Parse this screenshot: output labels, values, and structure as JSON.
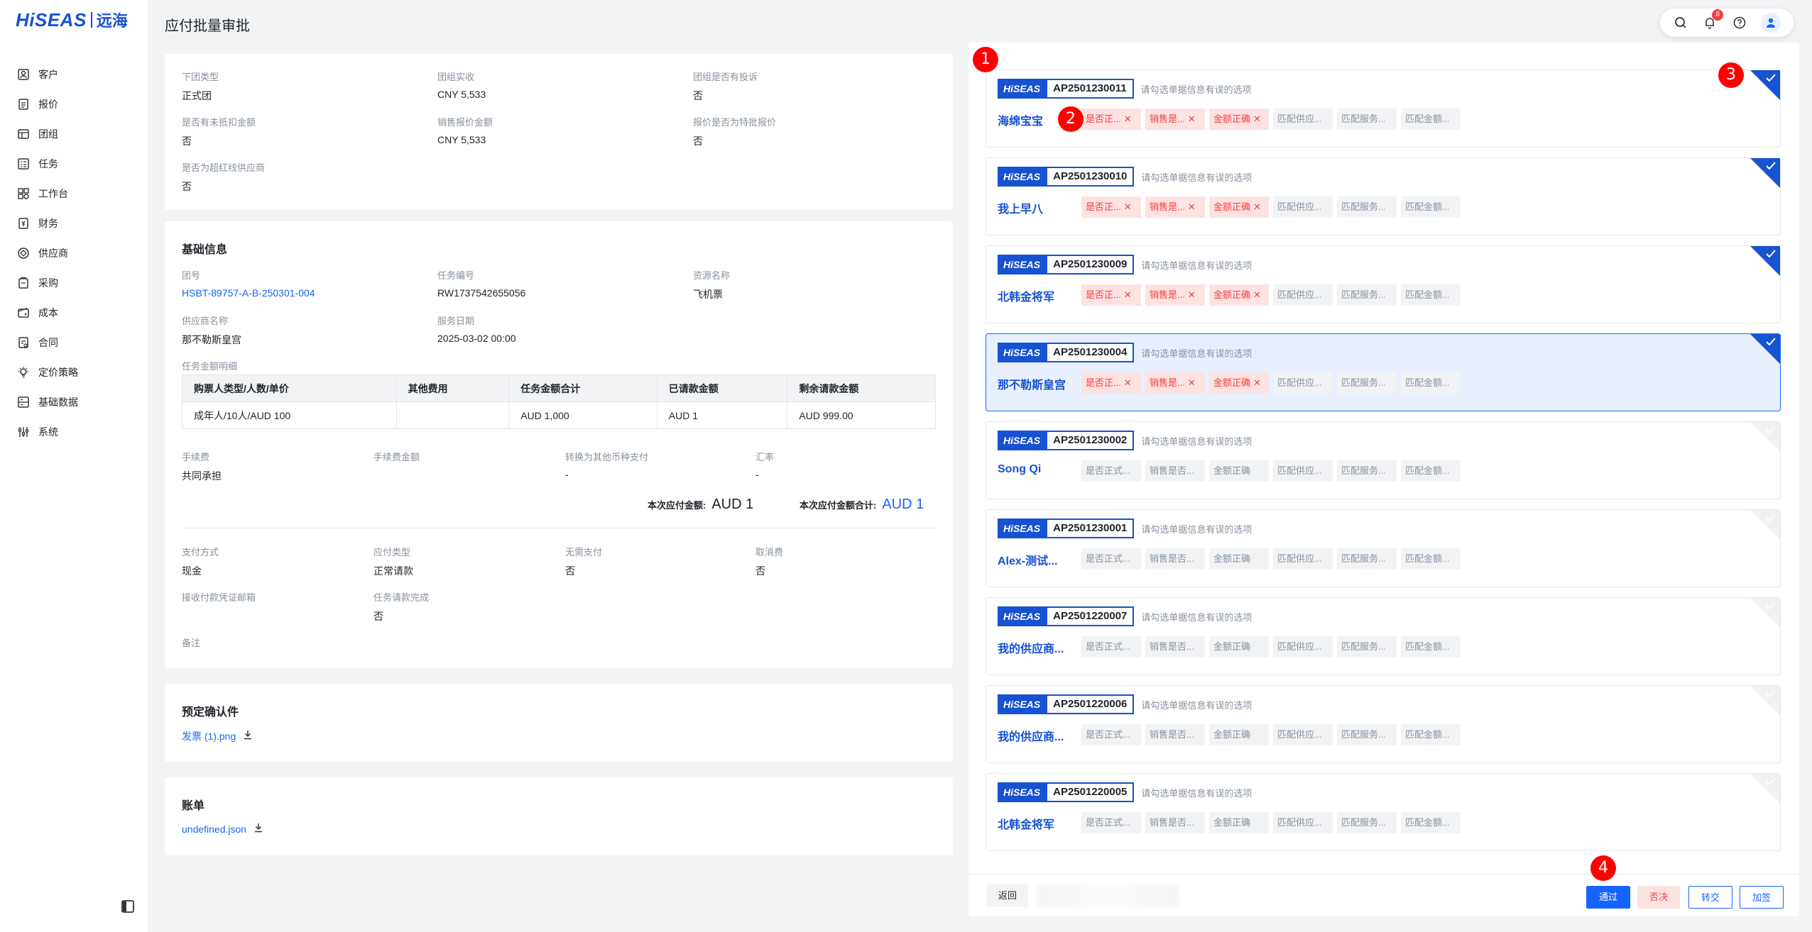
{
  "brand": {
    "en": "HiSEAS",
    "cn": "远海"
  },
  "page_title": "应付批量审批",
  "notifications_count": "8",
  "sidebar": {
    "items": [
      {
        "label": "客户",
        "icon": "customer-icon"
      },
      {
        "label": "报价",
        "icon": "quote-icon"
      },
      {
        "label": "团组",
        "icon": "group-icon"
      },
      {
        "label": "任务",
        "icon": "task-icon"
      },
      {
        "label": "工作台",
        "icon": "workbench-icon"
      },
      {
        "label": "财务",
        "icon": "finance-icon"
      },
      {
        "label": "供应商",
        "icon": "supplier-icon"
      },
      {
        "label": "采购",
        "icon": "purchase-icon"
      },
      {
        "label": "成本",
        "icon": "cost-icon"
      },
      {
        "label": "合同",
        "icon": "contract-icon"
      },
      {
        "label": "定价策略",
        "icon": "pricing-icon"
      },
      {
        "label": "基础数据",
        "icon": "basic-data-icon"
      },
      {
        "label": "系统",
        "icon": "system-icon"
      }
    ]
  },
  "summary": {
    "group_type": {
      "label": "下团类型",
      "value": "正式团"
    },
    "group_received": {
      "label": "团组实收",
      "value": "CNY 5,533"
    },
    "has_complaint": {
      "label": "团组是否有投诉",
      "value": "否"
    },
    "unoffset": {
      "label": "是否有未抵扣金额",
      "value": "否"
    },
    "sales_quote": {
      "label": "销售报价金额",
      "value": "CNY 5,533"
    },
    "special_quote": {
      "label": "报价是否为特批报价",
      "value": "否"
    },
    "redline": {
      "label": "是否为超红线供应商",
      "value": "否"
    }
  },
  "basic": {
    "title": "基础信息",
    "group_no": {
      "label": "团号",
      "value": "HSBT-89757-A-B-250301-004"
    },
    "task_no": {
      "label": "任务编号",
      "value": "RW1737542655056"
    },
    "resource": {
      "label": "资源名称",
      "value": "飞机票"
    },
    "supplier": {
      "label": "供应商名称",
      "value": "那不勒斯皇宫"
    },
    "service_date": {
      "label": "服务日期",
      "value": "2025-03-02 00:00"
    },
    "amount_detail_label": "任务金额明细",
    "table": {
      "headers": [
        "购票人类型/人数/单价",
        "其他费用",
        "任务金额合计",
        "已请款金额",
        "剩余请款金额"
      ],
      "rows": [
        [
          "成年人/10人/AUD 100",
          "",
          "AUD 1,000",
          "AUD 1",
          "AUD 999.00"
        ]
      ]
    },
    "fee": {
      "label": "手续费",
      "value": "共同承担"
    },
    "fee_amount": {
      "label": "手续费金额",
      "value": ""
    },
    "convert": {
      "label": "转换为其他币种支付",
      "value": "-"
    },
    "rate": {
      "label": "汇率",
      "value": "-"
    },
    "this_payable_label": "本次应付金额:",
    "this_payable_value": "AUD 1",
    "this_payable_total_label": "本次应付金额合计:",
    "this_payable_total_value": "AUD 1",
    "pay_method": {
      "label": "支付方式",
      "value": "现金"
    },
    "payable_type": {
      "label": "应付类型",
      "value": "正常请款"
    },
    "no_pay": {
      "label": "无需支付",
      "value": "否"
    },
    "cancel_fee": {
      "label": "取消费",
      "value": "否"
    },
    "voucher_email": {
      "label": "接收付款凭证邮箱",
      "value": ""
    },
    "task_done": {
      "label": "任务请款完成",
      "value": "否"
    },
    "remark": {
      "label": "备注",
      "value": ""
    }
  },
  "confirm": {
    "title": "预定确认件",
    "file": "发票 (1).png"
  },
  "bill": {
    "title": "账单",
    "file": "undefined.json"
  },
  "list": {
    "hint": "请勾选单据信息有误的选项",
    "logo": "HiSEAS",
    "items": [
      {
        "ap": "AP2501230011",
        "supplier": "海绵宝宝",
        "checked": true,
        "selected": false,
        "chips": [
          {
            "t": "是否正...",
            "err": true
          },
          {
            "t": "销售是...",
            "err": true
          },
          {
            "t": "金额正确",
            "err": true
          },
          {
            "t": "匹配供应...",
            "err": false
          },
          {
            "t": "匹配服务...",
            "err": false
          },
          {
            "t": "匹配金额...",
            "err": false
          }
        ]
      },
      {
        "ap": "AP2501230010",
        "supplier": "我上早八",
        "checked": true,
        "selected": false,
        "chips": [
          {
            "t": "是否正...",
            "err": true
          },
          {
            "t": "销售是...",
            "err": true
          },
          {
            "t": "金额正确",
            "err": true
          },
          {
            "t": "匹配供应...",
            "err": false
          },
          {
            "t": "匹配服务...",
            "err": false
          },
          {
            "t": "匹配金额...",
            "err": false
          }
        ]
      },
      {
        "ap": "AP2501230009",
        "supplier": "北韩金将军",
        "checked": true,
        "selected": false,
        "chips": [
          {
            "t": "是否正...",
            "err": true
          },
          {
            "t": "销售是...",
            "err": true
          },
          {
            "t": "金额正确",
            "err": true
          },
          {
            "t": "匹配供应...",
            "err": false
          },
          {
            "t": "匹配服务...",
            "err": false
          },
          {
            "t": "匹配金额...",
            "err": false
          }
        ]
      },
      {
        "ap": "AP2501230004",
        "supplier": "那不勒斯皇宫",
        "checked": true,
        "selected": true,
        "chips": [
          {
            "t": "是否正...",
            "err": true
          },
          {
            "t": "销售是...",
            "err": true
          },
          {
            "t": "金额正确",
            "err": true
          },
          {
            "t": "匹配供应...",
            "err": false
          },
          {
            "t": "匹配服务...",
            "err": false
          },
          {
            "t": "匹配金额...",
            "err": false
          }
        ]
      },
      {
        "ap": "AP2501230002",
        "supplier": "Song Qi",
        "checked": false,
        "selected": false,
        "chips": [
          {
            "t": "是否正式...",
            "err": false
          },
          {
            "t": "销售是否...",
            "err": false
          },
          {
            "t": "金额正确",
            "err": false
          },
          {
            "t": "匹配供应...",
            "err": false
          },
          {
            "t": "匹配服务...",
            "err": false
          },
          {
            "t": "匹配金额...",
            "err": false
          }
        ]
      },
      {
        "ap": "AP2501230001",
        "supplier": "Alex-测试...",
        "checked": false,
        "selected": false,
        "chips": [
          {
            "t": "是否正式...",
            "err": false
          },
          {
            "t": "销售是否...",
            "err": false
          },
          {
            "t": "金额正确",
            "err": false
          },
          {
            "t": "匹配供应...",
            "err": false
          },
          {
            "t": "匹配服务...",
            "err": false
          },
          {
            "t": "匹配金额...",
            "err": false
          }
        ]
      },
      {
        "ap": "AP2501220007",
        "supplier": "我的供应商...",
        "checked": false,
        "selected": false,
        "chips": [
          {
            "t": "是否正式...",
            "err": false
          },
          {
            "t": "销售是否...",
            "err": false
          },
          {
            "t": "金额正确",
            "err": false
          },
          {
            "t": "匹配供应...",
            "err": false
          },
          {
            "t": "匹配服务...",
            "err": false
          },
          {
            "t": "匹配金额...",
            "err": false
          }
        ]
      },
      {
        "ap": "AP2501220006",
        "supplier": "我的供应商...",
        "checked": false,
        "selected": false,
        "chips": [
          {
            "t": "是否正式...",
            "err": false
          },
          {
            "t": "销售是否...",
            "err": false
          },
          {
            "t": "金额正确",
            "err": false
          },
          {
            "t": "匹配供应...",
            "err": false
          },
          {
            "t": "匹配服务...",
            "err": false
          },
          {
            "t": "匹配金额...",
            "err": false
          }
        ]
      },
      {
        "ap": "AP2501220005",
        "supplier": "北韩金将军",
        "checked": false,
        "selected": false,
        "chips": [
          {
            "t": "是否正式...",
            "err": false
          },
          {
            "t": "销售是否...",
            "err": false
          },
          {
            "t": "金额正确",
            "err": false
          },
          {
            "t": "匹配供应...",
            "err": false
          },
          {
            "t": "匹配服务...",
            "err": false
          },
          {
            "t": "匹配金额...",
            "err": false
          }
        ]
      }
    ]
  },
  "footer": {
    "back": "返回",
    "pass": "通过",
    "reject": "否决",
    "transfer": "转交",
    "add_sign": "加签"
  },
  "markers": [
    "1",
    "2",
    "3",
    "4"
  ],
  "colors": {
    "primary": "#1664ff",
    "brand": "#1652d1",
    "error": "#f53f3f",
    "error_bg": "#fde2e2"
  }
}
